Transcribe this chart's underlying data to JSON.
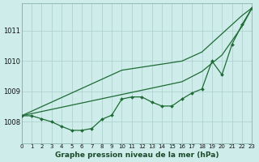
{
  "xlabel": "Graphe pression niveau de la mer (hPa)",
  "x_ticks": [
    0,
    1,
    2,
    3,
    4,
    5,
    6,
    7,
    8,
    9,
    10,
    11,
    12,
    13,
    14,
    15,
    16,
    17,
    18,
    19,
    20,
    21,
    22,
    23
  ],
  "ylim": [
    1007.3,
    1011.9
  ],
  "yticks": [
    1008,
    1009,
    1010,
    1011
  ],
  "background_color": "#ceecea",
  "grid_color": "#aacfcc",
  "line_color": "#1e6b35",
  "straight1": [
    1008.2,
    1008.35,
    1008.5,
    1008.65,
    1008.8,
    1008.95,
    1009.1,
    1009.25,
    1009.4,
    1009.55,
    1009.7,
    1009.75,
    1009.8,
    1009.85,
    1009.9,
    1009.95,
    1010.0,
    1010.15,
    1010.3,
    1010.6,
    1010.9,
    1011.2,
    1011.5,
    1011.75
  ],
  "straight2": [
    1008.2,
    1008.27,
    1008.34,
    1008.41,
    1008.48,
    1008.55,
    1008.62,
    1008.69,
    1008.76,
    1008.83,
    1008.9,
    1008.97,
    1009.04,
    1009.11,
    1009.18,
    1009.25,
    1009.32,
    1009.49,
    1009.66,
    1009.93,
    1010.2,
    1010.67,
    1011.14,
    1011.75
  ],
  "zigzag": [
    1008.2,
    1008.2,
    1008.1,
    1008.0,
    1007.85,
    1007.72,
    1007.72,
    1007.78,
    1008.08,
    1008.22,
    1008.75,
    1008.82,
    1008.82,
    1008.65,
    1008.52,
    1008.52,
    1008.75,
    1008.95,
    1009.08,
    1010.0,
    1009.55,
    1010.55,
    1011.2,
    1011.75
  ]
}
